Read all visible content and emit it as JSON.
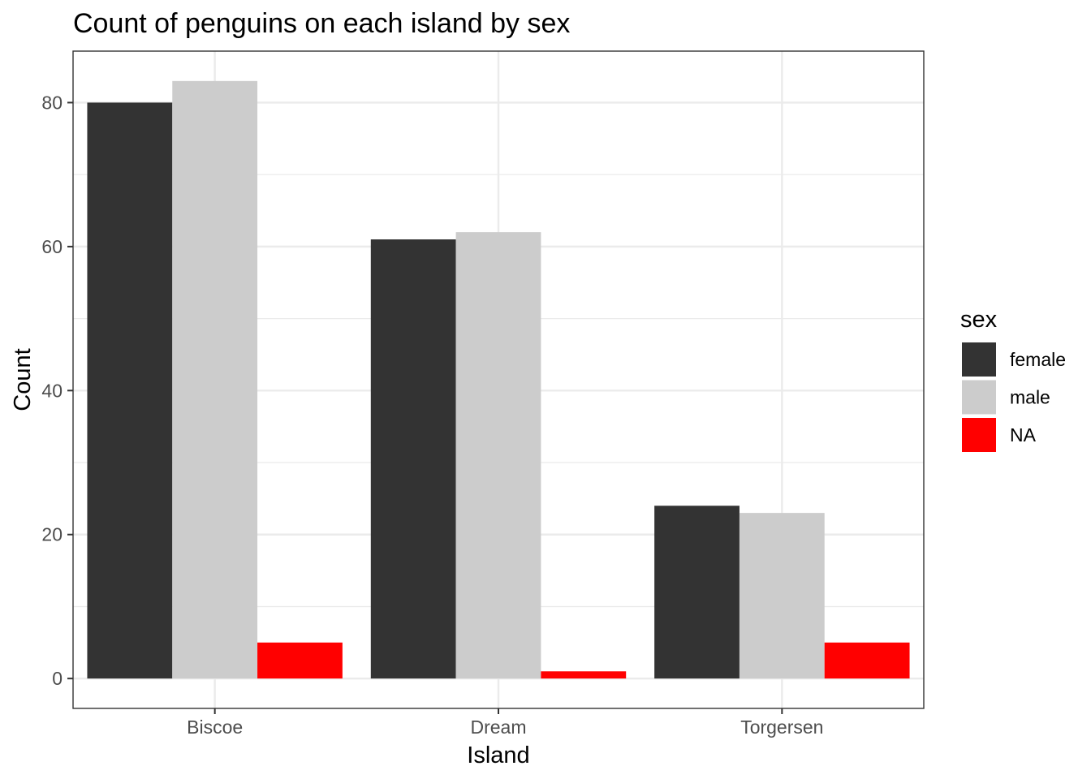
{
  "chart_data": {
    "type": "bar",
    "title": "Count of penguins on each island by sex",
    "xlabel": "Island",
    "ylabel": "Count",
    "categories": [
      "Biscoe",
      "Dream",
      "Torgersen"
    ],
    "series": [
      {
        "name": "female",
        "color": "#333333",
        "values": [
          80,
          61,
          24
        ]
      },
      {
        "name": "male",
        "color": "#cccccc",
        "values": [
          83,
          62,
          23
        ]
      },
      {
        "name": "NA",
        "color": "#ff0000",
        "values": [
          5,
          1,
          5
        ]
      }
    ],
    "yticks": [
      0,
      20,
      40,
      60,
      80
    ],
    "ylim": [
      -4.15,
      87.15
    ],
    "grid": true,
    "legend": {
      "title": "sex",
      "position": "right"
    }
  }
}
